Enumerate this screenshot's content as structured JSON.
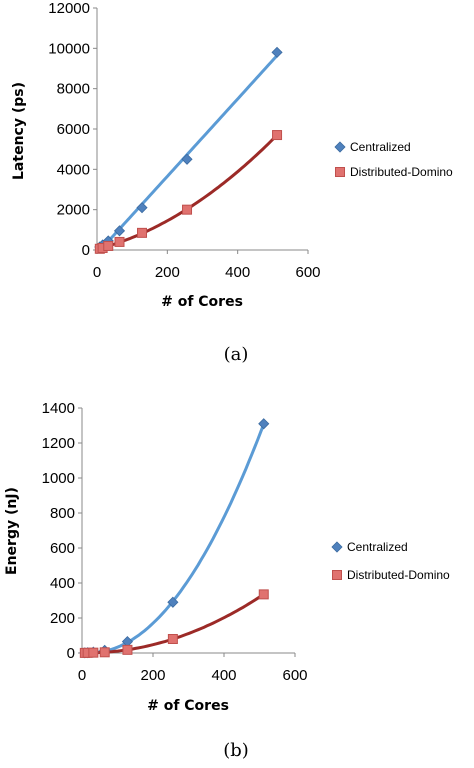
{
  "colors": {
    "centralized_marker": "#4f81bd",
    "centralized_line": "#5b9bd5",
    "domino_marker": "#c0504d",
    "domino_line": "#9c2a27",
    "axis": "#888888"
  },
  "chart_data": [
    {
      "type": "scatter",
      "caption": "(a)",
      "xlabel": "# of Cores",
      "ylabel": "Latency (ps)",
      "xlim": [
        0,
        600
      ],
      "ylim": [
        0,
        12000
      ],
      "xticks": [
        0,
        200,
        400,
        600
      ],
      "yticks": [
        0,
        2000,
        4000,
        6000,
        8000,
        10000,
        12000
      ],
      "legend": "right",
      "series": [
        {
          "name": "Centralized",
          "marker": "diamond",
          "trendline": "linear",
          "x": [
            8,
            16,
            32,
            64,
            128,
            256,
            512
          ],
          "y": [
            150,
            250,
            450,
            950,
            2100,
            4500,
            9800
          ]
        },
        {
          "name": "Distributed-Domino",
          "marker": "square",
          "trendline": "polynomial",
          "x": [
            8,
            16,
            32,
            64,
            128,
            256,
            512
          ],
          "y": [
            60,
            100,
            200,
            400,
            850,
            2000,
            5700
          ]
        }
      ]
    },
    {
      "type": "scatter",
      "caption": "(b)",
      "xlabel": "# of Cores",
      "ylabel": "Energy (nJ)",
      "xlim": [
        0,
        600
      ],
      "ylim": [
        0,
        1400
      ],
      "xticks": [
        0,
        200,
        400,
        600
      ],
      "yticks": [
        0,
        200,
        400,
        600,
        800,
        1000,
        1200,
        1400
      ],
      "legend": "right",
      "series": [
        {
          "name": "Centralized",
          "marker": "diamond",
          "trendline": "polynomial",
          "x": [
            8,
            16,
            32,
            64,
            128,
            256,
            512
          ],
          "y": [
            1,
            2,
            5,
            15,
            65,
            290,
            1310
          ]
        },
        {
          "name": "Distributed-Domino",
          "marker": "square",
          "trendline": "polynomial",
          "x": [
            8,
            16,
            32,
            64,
            128,
            256,
            512
          ],
          "y": [
            0.5,
            1,
            2,
            4,
            18,
            80,
            335
          ]
        }
      ]
    }
  ]
}
